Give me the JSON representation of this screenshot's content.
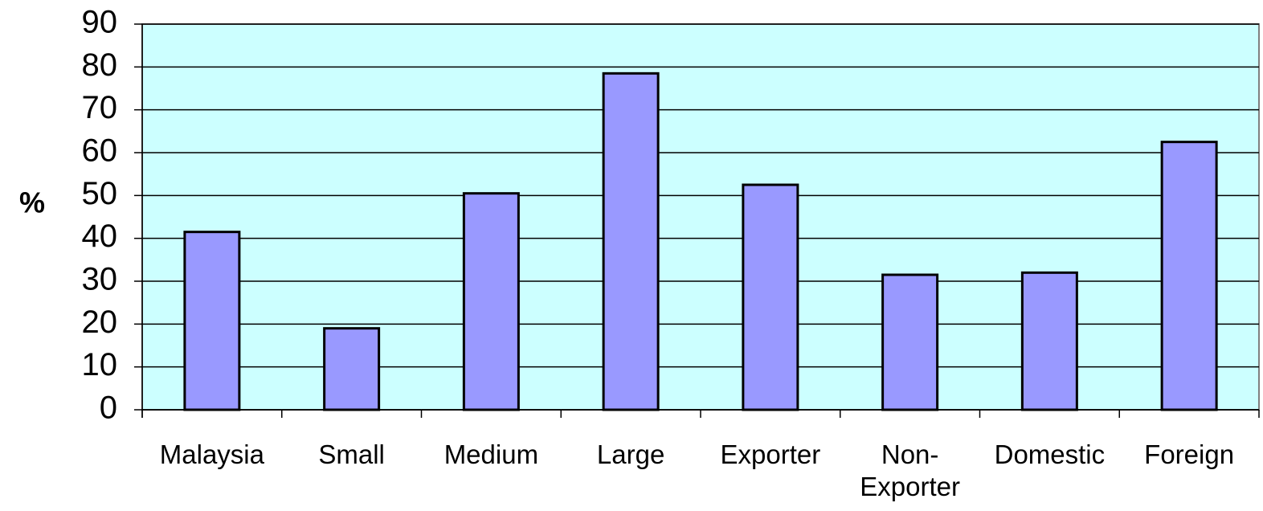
{
  "chart_data": {
    "type": "bar",
    "y_label": "%",
    "categories": [
      "Malaysia",
      "Small",
      "Medium",
      "Large",
      "Exporter",
      "Non-Exporter",
      "Domestic",
      "Foreign"
    ],
    "values": [
      41.5,
      19,
      50.5,
      78.5,
      52.5,
      31.5,
      32,
      62.5
    ],
    "color": "#9999ff",
    "background": "#ccffff",
    "ylim": [
      0,
      90
    ],
    "yticks": [
      0,
      10,
      20,
      30,
      40,
      50,
      60,
      70,
      80,
      90
    ],
    "grid": true
  }
}
